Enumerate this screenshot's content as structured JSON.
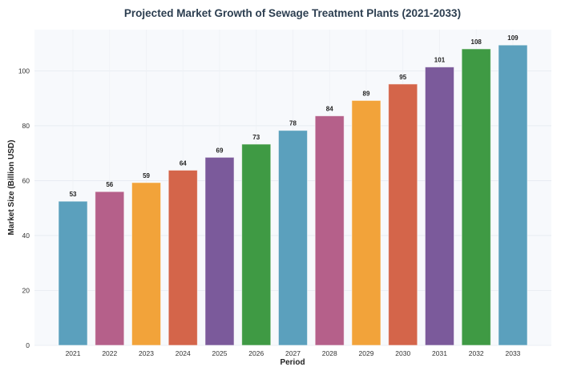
{
  "chart_data": {
    "type": "bar",
    "title": "Projected Market Growth of Sewage Treatment Plants (2021-2033)",
    "xlabel": "Period",
    "ylabel": "Market Size (Billion USD)",
    "categories": [
      "2021",
      "2022",
      "2023",
      "2024",
      "2025",
      "2026",
      "2027",
      "2028",
      "2029",
      "2030",
      "2031",
      "2032",
      "2033"
    ],
    "values": [
      52.5,
      56.0,
      59.3,
      63.8,
      68.5,
      73.3,
      78.3,
      83.6,
      89.2,
      95.2,
      101.4,
      108.0,
      109.4
    ],
    "data_labels": [
      "53",
      "56",
      "59",
      "64",
      "69",
      "73",
      "78",
      "84",
      "89",
      "95",
      "101",
      "108",
      "109"
    ],
    "colors": [
      "#5ba0bd",
      "#b5608a",
      "#f2a33a",
      "#d4654a",
      "#7b5a9b",
      "#3f9a44",
      "#5ba0bd",
      "#b5608a",
      "#f2a33a",
      "#d4654a",
      "#7b5a9b",
      "#3f9a44",
      "#5ba0bd"
    ],
    "ylim": [
      0,
      115
    ],
    "yticks": [
      0,
      20,
      40,
      60,
      80,
      100
    ],
    "grid": true,
    "background": "#f7f9fc"
  }
}
